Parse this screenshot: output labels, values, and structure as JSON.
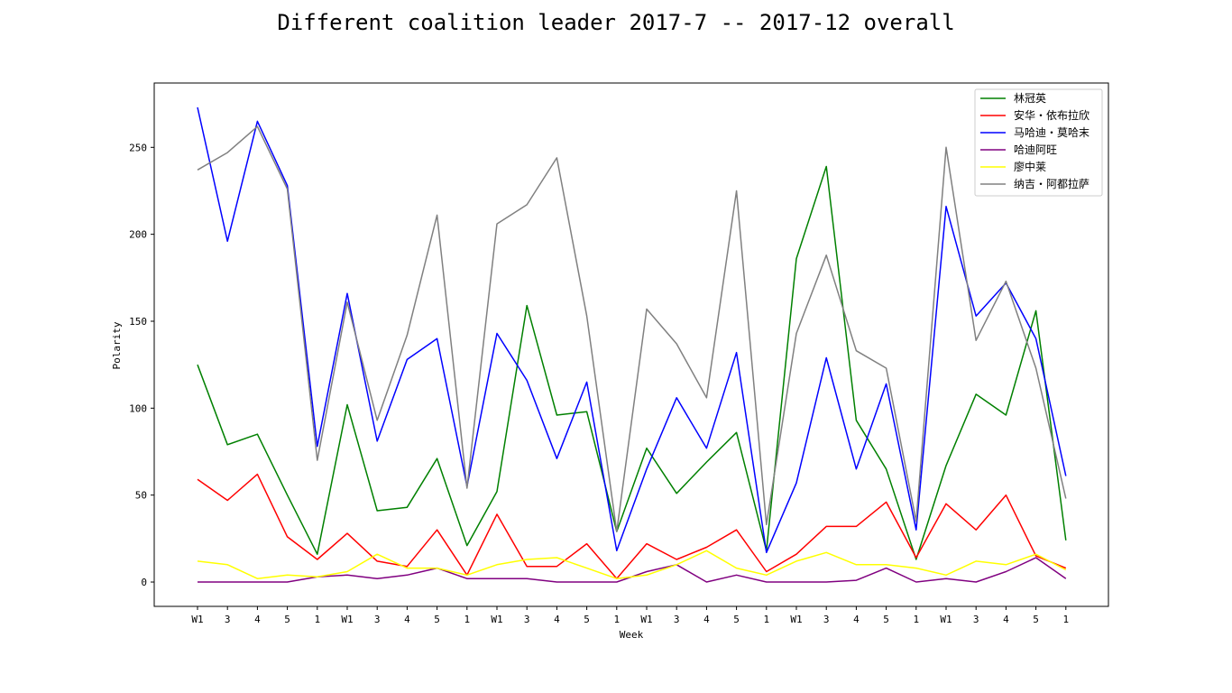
{
  "chart_data": {
    "type": "line",
    "title": "Different coalition leader 2017-7 -- 2017-12 overall",
    "xlabel": "Week",
    "ylabel": "Polarity",
    "x_tick_labels": [
      "W1",
      "3",
      "4",
      "5",
      "1",
      "W1",
      "3",
      "4",
      "5",
      "1",
      "W1",
      "3",
      "4",
      "5",
      "1",
      "W1",
      "3",
      "4",
      "5",
      "1",
      "W1",
      "3",
      "4",
      "5",
      "1",
      "W1",
      "3",
      "4",
      "5",
      "1"
    ],
    "y_ticks": [
      0,
      50,
      100,
      150,
      200,
      250
    ],
    "ylim": [
      -14,
      287
    ],
    "grid": false,
    "legend_position": "upper right",
    "series": [
      {
        "name": "林冠英",
        "color": "#008000",
        "values": [
          125,
          79,
          85,
          50,
          16,
          102,
          41,
          43,
          71,
          21,
          52,
          159,
          96,
          98,
          29,
          77,
          51,
          69,
          86,
          18,
          186,
          239,
          93,
          65,
          13,
          67,
          108,
          96,
          156,
          24
        ]
      },
      {
        "name": "安华・依布拉欣",
        "color": "#ff0000",
        "values": [
          59,
          47,
          62,
          26,
          13,
          28,
          12,
          9,
          30,
          4,
          39,
          9,
          9,
          22,
          2,
          22,
          13,
          20,
          30,
          6,
          16,
          32,
          32,
          46,
          14,
          45,
          30,
          50,
          15,
          8
        ]
      },
      {
        "name": "马哈迪・莫哈末",
        "color": "#0000ff",
        "values": [
          273,
          196,
          265,
          228,
          78,
          166,
          81,
          128,
          140,
          55,
          143,
          116,
          71,
          115,
          18,
          65,
          106,
          77,
          132,
          17,
          57,
          129,
          65,
          114,
          30,
          216,
          153,
          172,
          140,
          61
        ]
      },
      {
        "name": "哈迪阿旺",
        "color": "#800080",
        "values": [
          0,
          0,
          0,
          0,
          3,
          4,
          2,
          4,
          8,
          2,
          2,
          2,
          0,
          0,
          0,
          6,
          10,
          0,
          4,
          0,
          0,
          0,
          1,
          8,
          0,
          2,
          0,
          6,
          14,
          2
        ]
      },
      {
        "name": "廖中莱",
        "color": "#ffff00",
        "values": [
          12,
          10,
          2,
          4,
          3,
          6,
          16,
          8,
          8,
          4,
          10,
          13,
          14,
          8,
          2,
          4,
          10,
          18,
          8,
          4,
          12,
          17,
          10,
          10,
          8,
          4,
          12,
          10,
          16,
          7
        ]
      },
      {
        "name": "纳吉・阿都拉萨",
        "color": "#808080",
        "values": [
          237,
          247,
          262,
          226,
          70,
          161,
          93,
          142,
          211,
          54,
          206,
          217,
          244,
          153,
          29,
          157,
          137,
          106,
          225,
          33,
          143,
          188,
          133,
          123,
          35,
          250,
          139,
          173,
          123,
          48
        ]
      }
    ]
  }
}
